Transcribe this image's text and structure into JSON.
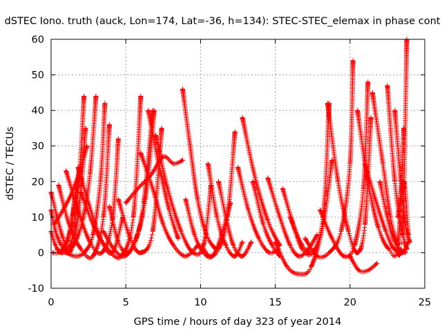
{
  "chart_data": {
    "type": "scatter",
    "title": "dSTEC Iono. truth (auck, Lon=174, Lat=-36, h=134): STEC-STEC_elemax in phase cont",
    "xlabel": "GPS time / hours of day 323 of year 2014",
    "ylabel": "dSTEC  / TECUs",
    "xlim": [
      0,
      25
    ],
    "ylim": [
      -10,
      60
    ],
    "xticks": [
      "0",
      "5",
      "10",
      "15",
      "20",
      "25"
    ],
    "yticks": [
      "-10",
      "0",
      "10",
      "20",
      "30",
      "40",
      "50",
      "60"
    ],
    "grid": true,
    "legend": "none",
    "marker": "+",
    "series_color": "#ff0000",
    "series": [
      {
        "x": [
          0.0,
          0.4,
          0.8,
          1.1,
          1.5,
          1.9,
          2.2
        ],
        "y": [
          17,
          10,
          4,
          1,
          6,
          22,
          44
        ]
      },
      {
        "x": [
          0.0,
          0.3,
          0.7,
          1.2,
          1.6,
          2.0,
          2.3
        ],
        "y": [
          12,
          6,
          2,
          0,
          5,
          18,
          35
        ]
      },
      {
        "x": [
          0.0,
          0.3,
          0.7,
          1.1,
          1.5,
          1.9
        ],
        "y": [
          6,
          2,
          0,
          3,
          12,
          23
        ]
      },
      {
        "x": [
          0.1,
          0.5,
          0.9,
          1.3,
          1.6,
          1.9
        ],
        "y": [
          0,
          0,
          2,
          7,
          16,
          24
        ]
      },
      {
        "x": [
          0.4,
          0.9,
          1.5,
          2.1,
          2.6,
          3.0
        ],
        "y": [
          1,
          0,
          2,
          9,
          22,
          44
        ]
      },
      {
        "x": [
          1.0,
          1.6,
          2.2,
          2.8,
          3.3,
          3.6
        ],
        "y": [
          0,
          -1,
          0,
          5,
          20,
          42
        ]
      },
      {
        "x": [
          0.2,
          0.8,
          1.4,
          2.0,
          2.4
        ],
        "y": [
          8,
          12,
          17,
          24,
          30
        ]
      },
      {
        "x": [
          0.5,
          1.2,
          2.0,
          2.8,
          3.5,
          3.9
        ],
        "y": [
          19,
          8,
          1,
          -1,
          10,
          36
        ]
      },
      {
        "x": [
          1.0,
          1.8,
          2.6,
          3.4,
          4.1,
          4.5
        ],
        "y": [
          23,
          12,
          3,
          0,
          9,
          32
        ]
      },
      {
        "x": [
          1.8,
          2.5,
          3.3,
          4.1,
          4.8
        ],
        "y": [
          24,
          14,
          4,
          0,
          10
        ]
      },
      {
        "x": [
          2.0,
          2.9,
          3.8,
          4.7,
          5.5,
          6.0
        ],
        "y": [
          17,
          7,
          1,
          -1,
          10,
          44
        ]
      },
      {
        "x": [
          3.5,
          4.2,
          4.9,
          5.6,
          6.3,
          6.9
        ],
        "y": [
          6,
          1,
          -1,
          3,
          15,
          40
        ]
      },
      {
        "x": [
          3.9,
          4.5,
          5.1,
          5.7,
          6.2,
          6.8
        ],
        "y": [
          13,
          3,
          0,
          4,
          14,
          40
        ]
      },
      {
        "x": [
          4.5,
          5.3,
          6.0,
          6.8,
          7.4
        ],
        "y": [
          15,
          4,
          0,
          6,
          35
        ]
      },
      {
        "x": [
          5.0,
          5.8,
          6.7,
          7.5,
          8.2,
          8.8
        ],
        "y": [
          14,
          18,
          22,
          27,
          25,
          26
        ]
      },
      {
        "x": [
          6.0,
          6.8,
          7.5,
          8.2,
          9.0,
          9.8
        ],
        "y": [
          28,
          18,
          8,
          2,
          -1,
          2
        ]
      },
      {
        "x": [
          6.5,
          7.2,
          7.9,
          8.5
        ],
        "y": [
          40,
          25,
          12,
          4
        ]
      },
      {
        "x": [
          7.0,
          7.8,
          8.7,
          9.5,
          10.2,
          10.7
        ],
        "y": [
          33,
          18,
          6,
          0,
          2,
          19
        ]
      },
      {
        "x": [
          8.8,
          9.3,
          9.8,
          10.4,
          11.0
        ],
        "y": [
          46,
          30,
          15,
          5,
          1
        ]
      },
      {
        "x": [
          9.0,
          9.6,
          10.2,
          10.8,
          11.4,
          12.0
        ],
        "y": [
          15,
          5,
          0,
          -1,
          5,
          14
        ]
      },
      {
        "x": [
          10.1,
          10.6,
          11.2,
          11.8,
          12.3
        ],
        "y": [
          2,
          -1,
          1,
          10,
          34
        ]
      },
      {
        "x": [
          10.5,
          11.1,
          11.7,
          12.3,
          12.8
        ],
        "y": [
          25,
          10,
          2,
          -1,
          3
        ]
      },
      {
        "x": [
          11.2,
          11.7,
          12.2,
          12.8,
          13.4
        ],
        "y": [
          20,
          10,
          2,
          -1,
          3
        ]
      },
      {
        "x": [
          12.5,
          13.2,
          13.9,
          14.6,
          15.2
        ],
        "y": [
          24,
          12,
          4,
          0,
          1
        ]
      },
      {
        "x": [
          12.8,
          13.6,
          14.5,
          15.3
        ],
        "y": [
          38,
          22,
          9,
          2
        ]
      },
      {
        "x": [
          13.5,
          14.2,
          14.8,
          15.3
        ],
        "y": [
          20,
          8,
          2,
          -1
        ]
      },
      {
        "x": [
          14.5,
          15.3,
          16.0,
          16.6,
          17.2,
          17.8
        ],
        "y": [
          21,
          10,
          2,
          -1,
          1,
          5
        ]
      },
      {
        "x": [
          15.0,
          15.8,
          16.6,
          17.4,
          18.2,
          18.6
        ],
        "y": [
          3,
          -4,
          -6,
          -4,
          10,
          42
        ]
      },
      {
        "x": [
          15.5,
          16.2,
          16.8,
          17.3
        ],
        "y": [
          18,
          8,
          2,
          0
        ]
      },
      {
        "x": [
          16.0,
          16.8,
          17.5,
          18.2,
          18.8
        ],
        "y": [
          10,
          1,
          0,
          8,
          26
        ]
      },
      {
        "x": [
          17.0,
          17.8,
          18.6,
          19.4,
          20.0,
          20.2
        ],
        "y": [
          4,
          -1,
          0,
          6,
          25,
          54
        ]
      },
      {
        "x": [
          18.0,
          18.8,
          19.6,
          20.3,
          20.9,
          21.2
        ],
        "y": [
          12,
          4,
          -1,
          2,
          18,
          48
        ]
      },
      {
        "x": [
          18.5,
          19.2,
          19.9,
          20.5,
          21.0,
          21.4
        ],
        "y": [
          42,
          20,
          6,
          0,
          8,
          38
        ]
      },
      {
        "x": [
          20.0,
          20.6,
          21.2,
          21.8
        ],
        "y": [
          -1,
          -5,
          -5,
          -3
        ]
      },
      {
        "x": [
          20.5,
          21.2,
          21.9,
          22.6,
          23.2,
          23.6
        ],
        "y": [
          40,
          20,
          7,
          1,
          2,
          35
        ]
      },
      {
        "x": [
          21.0,
          21.7,
          22.4,
          23.0,
          23.5,
          23.8
        ],
        "y": [
          25,
          15,
          6,
          1,
          5,
          60
        ]
      },
      {
        "x": [
          21.5,
          22.2,
          22.7,
          23.2,
          23.7
        ],
        "y": [
          45,
          25,
          10,
          2,
          0
        ]
      },
      {
        "x": [
          22.0,
          22.5,
          23.0,
          23.5,
          23.9
        ],
        "y": [
          20,
          10,
          3,
          0,
          3
        ]
      },
      {
        "x": [
          22.5,
          23.0,
          23.5,
          23.8
        ],
        "y": [
          47,
          20,
          6,
          1
        ]
      },
      {
        "x": [
          23.0,
          23.4,
          23.7,
          24.0
        ],
        "y": [
          40,
          20,
          8,
          3
        ]
      },
      {
        "x": [
          23.2,
          23.6,
          23.9
        ],
        "y": [
          10,
          20,
          5
        ]
      }
    ]
  }
}
